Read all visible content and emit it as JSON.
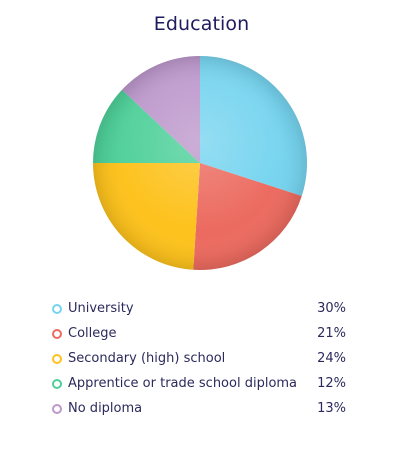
{
  "chart_data": {
    "type": "pie",
    "title": "Education",
    "categories": [
      "University",
      "College",
      "Secondary (high) school",
      "Apprentice or trade school diploma",
      "No diploma"
    ],
    "values": [
      30,
      21,
      24,
      12,
      13
    ],
    "value_labels": [
      "30%",
      "21%",
      "24%",
      "12%",
      "13%"
    ],
    "colors": [
      "#76d4ef",
      "#ec6b60",
      "#fdc21d",
      "#4fd09a",
      "#bd98cc"
    ],
    "legend_position": "bottom",
    "start_angle": "top"
  }
}
